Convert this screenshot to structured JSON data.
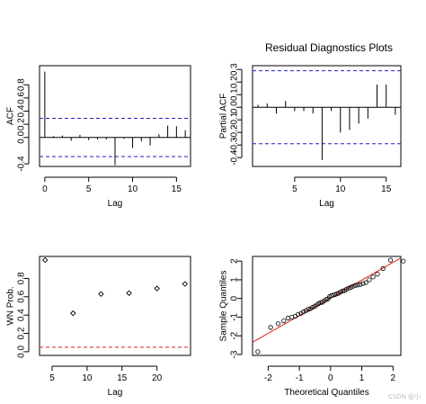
{
  "title": "Residual Diagnostics Plots",
  "watermark": "CSDN @小",
  "chart_data": [
    {
      "type": "bar",
      "id": "acf",
      "xlabel": "Lag",
      "ylabel": "ACF",
      "xlim": [
        -0.6,
        16.6
      ],
      "ylim": [
        -0.44,
        1.09
      ],
      "xticks": [
        0,
        5,
        10,
        15
      ],
      "yticks": [
        -0.4,
        0.0,
        0.2,
        0.4,
        0.6,
        0.8
      ],
      "bounds": [
        0.29,
        -0.29
      ],
      "x": [
        0,
        1,
        2,
        3,
        4,
        5,
        6,
        7,
        8,
        9,
        10,
        11,
        12,
        13,
        14,
        15,
        16
      ],
      "values": [
        1.0,
        0.02,
        0.03,
        -0.05,
        0.04,
        -0.04,
        -0.03,
        -0.03,
        -0.42,
        -0.02,
        -0.16,
        -0.06,
        -0.12,
        0.05,
        0.18,
        0.17,
        0.11
      ]
    },
    {
      "type": "bar",
      "id": "pacf",
      "xlabel": "Lag",
      "ylabel": "Partial ACF",
      "xlim": [
        0.4,
        16.6
      ],
      "ylim": [
        -0.47,
        0.33
      ],
      "xticks": [
        5,
        10,
        15
      ],
      "yticks": [
        -0.4,
        -0.3,
        -0.2,
        -0.1,
        0.0,
        0.1,
        0.2,
        0.3
      ],
      "bounds": [
        0.29,
        -0.29
      ],
      "x": [
        1,
        2,
        3,
        4,
        5,
        6,
        7,
        8,
        9,
        10,
        11,
        12,
        13,
        14,
        15,
        16
      ],
      "values": [
        0.02,
        0.03,
        -0.05,
        0.05,
        -0.03,
        -0.03,
        -0.05,
        -0.42,
        -0.03,
        -0.2,
        -0.18,
        -0.13,
        -0.09,
        0.18,
        0.18,
        -0.06
      ]
    },
    {
      "type": "scatter",
      "id": "wn",
      "xlabel": "Lag",
      "ylabel": "WN Prob.",
      "xlim": [
        3.2,
        24.8
      ],
      "ylim": [
        -0.04,
        1.04
      ],
      "xticks": [
        5,
        10,
        15,
        20
      ],
      "yticks": [
        0.0,
        0.2,
        0.4,
        0.6,
        0.8
      ],
      "hline": 0.05,
      "x": [
        4,
        8,
        12,
        16,
        20,
        24
      ],
      "y": [
        1.0,
        0.42,
        0.63,
        0.64,
        0.69,
        0.74
      ]
    },
    {
      "type": "scatter",
      "id": "qq",
      "xlabel": "Theoretical Quantiles",
      "ylabel": "Sample Quantiles",
      "xlim": [
        -2.5,
        2.25
      ],
      "ylim": [
        -3.05,
        2.25
      ],
      "xticks": [
        -2,
        -1,
        0,
        1,
        2
      ],
      "yticks": [
        -3,
        -2,
        -1,
        0,
        1,
        2
      ],
      "refline": {
        "intercept": 0.03,
        "slope": 0.95
      },
      "x": [
        -2.33,
        -1.92,
        -1.68,
        -1.5,
        -1.36,
        -1.24,
        -1.13,
        -1.04,
        -0.95,
        -0.87,
        -0.79,
        -0.72,
        -0.65,
        -0.58,
        -0.51,
        -0.45,
        -0.39,
        -0.32,
        -0.26,
        -0.2,
        -0.14,
        -0.08,
        -0.03,
        0.03,
        0.08,
        0.14,
        0.2,
        0.26,
        0.32,
        0.39,
        0.45,
        0.51,
        0.58,
        0.65,
        0.72,
        0.79,
        0.87,
        0.95,
        1.04,
        1.13,
        1.24,
        1.36,
        1.5,
        1.68,
        1.92,
        2.33
      ],
      "y": [
        -2.85,
        -1.55,
        -1.35,
        -1.2,
        -1.05,
        -1.0,
        -0.95,
        -0.85,
        -0.8,
        -0.72,
        -0.65,
        -0.58,
        -0.55,
        -0.48,
        -0.42,
        -0.35,
        -0.28,
        -0.22,
        -0.2,
        -0.12,
        -0.05,
        -0.02,
        0.1,
        0.15,
        0.18,
        0.2,
        0.25,
        0.28,
        0.35,
        0.4,
        0.42,
        0.5,
        0.55,
        0.6,
        0.65,
        0.7,
        0.72,
        0.75,
        0.8,
        0.85,
        1.0,
        1.15,
        1.3,
        1.6,
        2.05,
        2.0
      ]
    }
  ]
}
